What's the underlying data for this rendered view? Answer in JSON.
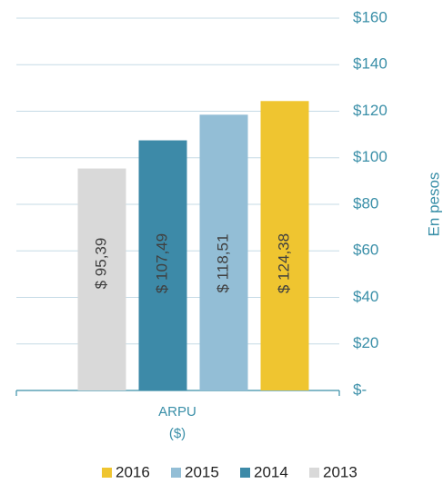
{
  "chart_data": {
    "type": "bar",
    "categories": [
      "ARPU\n($)"
    ],
    "y_axis_label": "En pesos",
    "series": [
      {
        "name": "2013",
        "color": "#d9d9d9",
        "values": [
          95.39
        ],
        "value_labels": [
          "$ 95,39"
        ]
      },
      {
        "name": "2014",
        "color": "#3d8aa8",
        "values": [
          107.49
        ],
        "value_labels": [
          "$ 107,49"
        ]
      },
      {
        "name": "2015",
        "color": "#93bed6",
        "values": [
          118.51
        ],
        "value_labels": [
          "$ 118,51"
        ]
      },
      {
        "name": "2016",
        "color": "#efc530",
        "values": [
          124.38
        ],
        "value_labels": [
          "$ 124,38"
        ]
      }
    ],
    "ylim": [
      0,
      160
    ],
    "yticks": [
      {
        "value": 0,
        "label": "$-"
      },
      {
        "value": 20,
        "label": "$20"
      },
      {
        "value": 40,
        "label": "$40"
      },
      {
        "value": 60,
        "label": "$60"
      },
      {
        "value": 80,
        "label": "$80"
      },
      {
        "value": 100,
        "label": "$100"
      },
      {
        "value": 120,
        "label": "$120"
      },
      {
        "value": 140,
        "label": "$140"
      },
      {
        "value": 160,
        "label": "$160"
      }
    ],
    "grid": true
  }
}
